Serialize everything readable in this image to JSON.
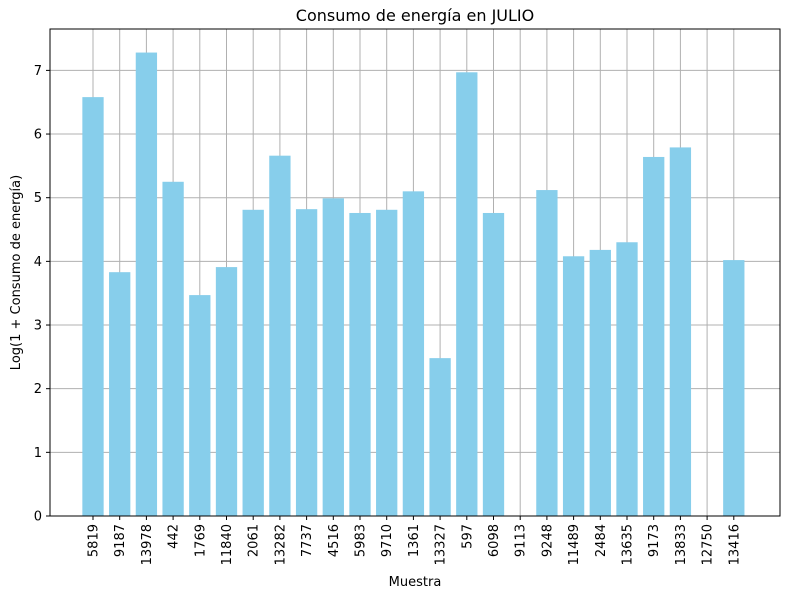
{
  "chart_data": {
    "type": "bar",
    "title": "Consumo de energía en JULIO",
    "xlabel": "Muestra",
    "ylabel": "Log(1 + Consumo de energía)",
    "categories": [
      "5819",
      "9187",
      "13978",
      "442",
      "1769",
      "11840",
      "2061",
      "13282",
      "7737",
      "4516",
      "5983",
      "9710",
      "1361",
      "13327",
      "597",
      "6098",
      "9113",
      "9248",
      "11489",
      "2484",
      "13635",
      "9173",
      "13833",
      "12750",
      "13416"
    ],
    "values": [
      6.58,
      3.83,
      7.28,
      5.25,
      3.47,
      3.91,
      4.81,
      5.66,
      4.82,
      4.99,
      4.76,
      4.81,
      5.1,
      2.48,
      6.97,
      4.76,
      0,
      5.12,
      4.08,
      4.18,
      4.3,
      5.64,
      5.79,
      0,
      4.02
    ],
    "yticks": [
      0,
      1,
      2,
      3,
      4,
      5,
      6,
      7
    ],
    "ylim": [
      0,
      7.65
    ],
    "grid": true,
    "bar_color": "#87ceeb",
    "grid_color": "#b0b0b0"
  }
}
